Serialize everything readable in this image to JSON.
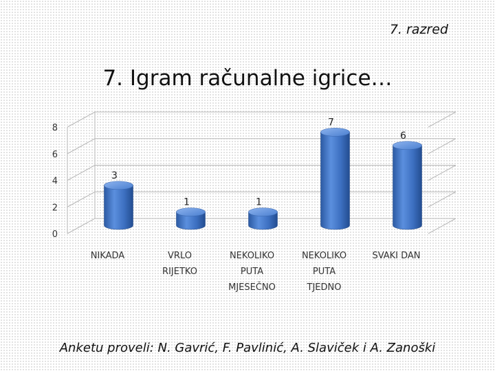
{
  "slide": {
    "grade": "7. razred",
    "title": "7. Igram računalne igrice…",
    "credits": "Anketu proveli: N. Gavrić, F. Pavlinić, A. Slaviček i A. Zanoški"
  },
  "chart_data": {
    "type": "bar",
    "title": "",
    "xlabel": "",
    "ylabel": "",
    "categories": [
      [
        "NIKADA"
      ],
      [
        "VRLO",
        "RIJETKO"
      ],
      [
        "NEKOLIKO",
        "PUTA",
        "MJESEČNO"
      ],
      [
        "NEKOLIKO",
        "PUTA",
        "TJEDNO"
      ],
      [
        "SVAKI DAN"
      ]
    ],
    "values": [
      3,
      1,
      1,
      7,
      6
    ],
    "ylim": [
      0,
      8
    ],
    "yticks": [
      0,
      2,
      4,
      6,
      8
    ],
    "grid": true,
    "bar_style": "3d-cylinder",
    "bar_color": "#3f74c4"
  }
}
